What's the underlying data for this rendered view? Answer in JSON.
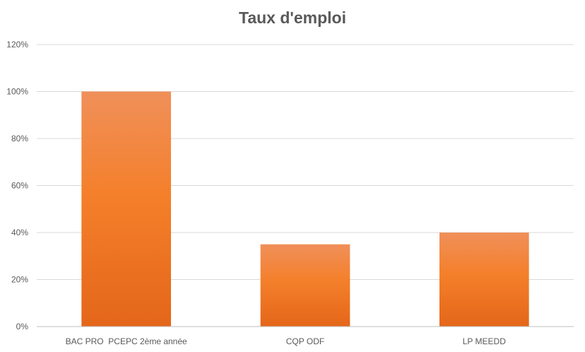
{
  "chart_data": {
    "type": "bar",
    "title": "Taux d'emploi",
    "categories": [
      "BAC PRO  PCEPC 2ème année",
      "CQP ODF",
      "LP MEEDD"
    ],
    "values": [
      1.0,
      0.35,
      0.4
    ],
    "ylim": [
      0,
      1.2
    ],
    "yticks": [
      0,
      0.2,
      0.4,
      0.6,
      0.8,
      1.0,
      1.2
    ],
    "ytick_labels": [
      "0%",
      "20%",
      "40%",
      "60%",
      "80%",
      "100%",
      "120%"
    ],
    "xlabel": "",
    "ylabel": "",
    "grid": true,
    "legend": "none",
    "colors": {
      "bar_top": "#F0905A",
      "bar_mid": "#F47F2A",
      "bar_bottom": "#E4661A",
      "grid": "#D9D9D9",
      "axis": "#BFBFBF",
      "text": "#595959"
    }
  }
}
